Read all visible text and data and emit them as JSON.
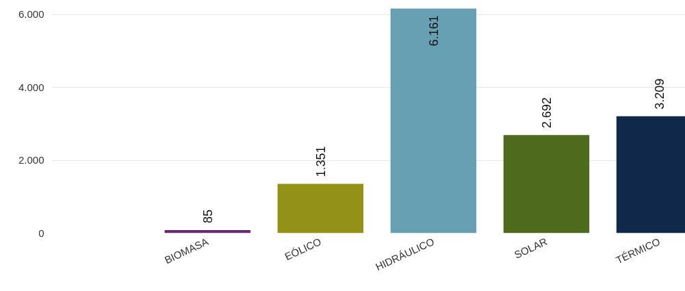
{
  "chart_data": {
    "type": "bar",
    "categories": [
      "BIOMASA",
      "EÓLICO",
      "HIDRÁULICO",
      "SOLAR",
      "TÉRMICO"
    ],
    "values": [
      85,
      1351,
      6161,
      2692,
      3209
    ],
    "colors": [
      "#6a2c70",
      "#939117",
      "#66a0b2",
      "#4e6a1c",
      "#10284a"
    ],
    "value_labels": [
      "85",
      "1.351",
      "6.161",
      "2.692",
      "3.209"
    ],
    "ylim": [
      0,
      6200
    ],
    "yticks": [
      {
        "value": 0,
        "label": "0"
      },
      {
        "value": 2000,
        "label": "2.000"
      },
      {
        "value": 4000,
        "label": "4.000"
      },
      {
        "value": 6000,
        "label": "6.000"
      }
    ],
    "grid": "y"
  }
}
